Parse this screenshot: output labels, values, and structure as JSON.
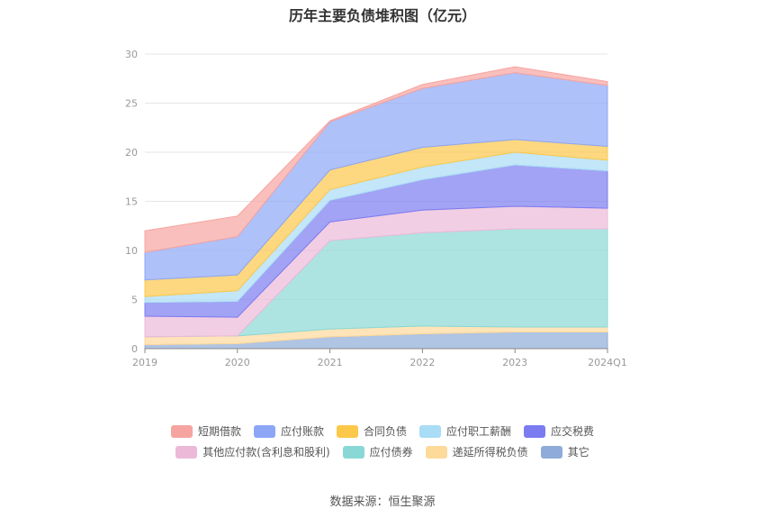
{
  "title": "历年主要负债堆积图（亿元）",
  "source": "数据来源：恒生聚源",
  "chart_data": {
    "type": "area",
    "stacked": true,
    "categories": [
      "2019",
      "2020",
      "2021",
      "2022",
      "2023",
      "2024Q1"
    ],
    "ylim": [
      0,
      30
    ],
    "yticks": [
      0,
      5,
      10,
      15,
      20,
      25,
      30
    ],
    "grid": true,
    "legend_position": "bottom",
    "series": [
      {
        "name": "其它",
        "color": "#8fabd9",
        "values": [
          0.4,
          0.5,
          1.2,
          1.5,
          1.7,
          1.7
        ]
      },
      {
        "name": "递延所得税负债",
        "color": "#fdd99a",
        "values": [
          0.8,
          0.8,
          0.8,
          0.8,
          0.5,
          0.5
        ]
      },
      {
        "name": "应付债券",
        "color": "#8ad8d6",
        "values": [
          0.0,
          0.0,
          9.0,
          9.5,
          10.0,
          10.0
        ]
      },
      {
        "name": "其他应付款(含利息和股利)",
        "color": "#ecb9d8",
        "values": [
          2.1,
          1.9,
          1.9,
          2.3,
          2.3,
          2.1
        ]
      },
      {
        "name": "应交税费",
        "color": "#7b7cf0",
        "values": [
          1.4,
          1.6,
          2.2,
          3.1,
          4.2,
          3.8
        ]
      },
      {
        "name": "应付职工薪酬",
        "color": "#a9dcf5",
        "values": [
          0.6,
          1.1,
          1.1,
          1.3,
          1.3,
          1.1
        ]
      },
      {
        "name": "合同负债",
        "color": "#fcc84a",
        "values": [
          1.7,
          1.6,
          2.0,
          2.0,
          1.3,
          1.4
        ]
      },
      {
        "name": "应付账款",
        "color": "#8da7f6",
        "values": [
          2.8,
          3.9,
          4.9,
          6.0,
          6.8,
          6.2
        ]
      },
      {
        "name": "短期借款",
        "color": "#f6a4a0",
        "values": [
          2.2,
          2.1,
          0.1,
          0.4,
          0.6,
          0.4
        ]
      }
    ],
    "legend_rows": [
      [
        "短期借款",
        "应付账款",
        "合同负债",
        "应付职工薪酬",
        "应交税费"
      ],
      [
        "其他应付款(含利息和股利)",
        "应付债券",
        "递延所得税负债",
        "其它"
      ]
    ]
  }
}
